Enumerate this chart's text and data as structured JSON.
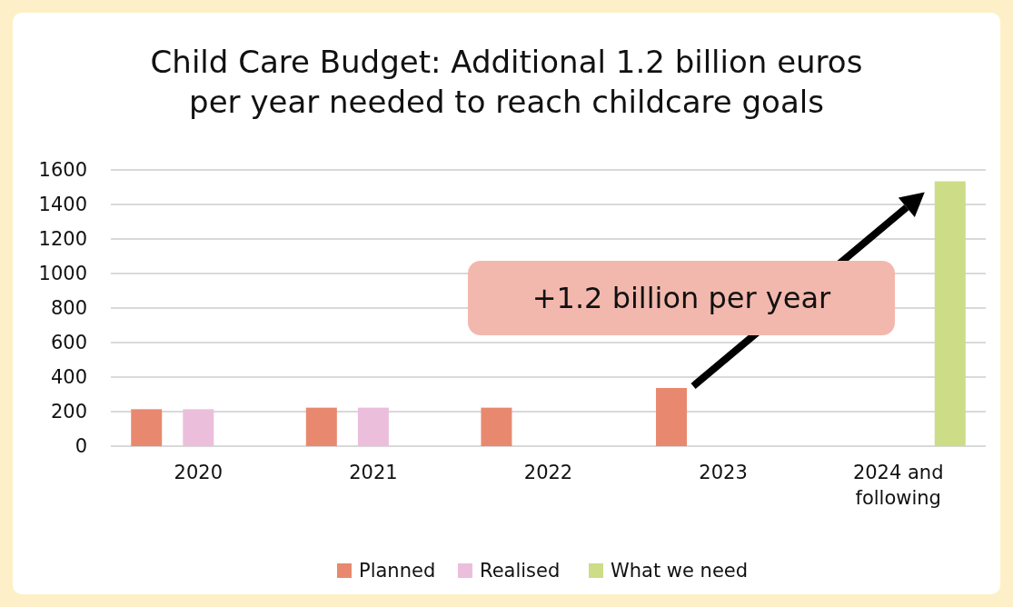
{
  "chart_data": {
    "type": "bar",
    "title": "Child Care Budget: Additional 1.2 billion euros per year needed to reach childcare goals",
    "categories": [
      "2020",
      "2021",
      "2022",
      "2023",
      "2024 and following"
    ],
    "series": [
      {
        "name": "Planned",
        "color": "#e8896f",
        "values": [
          214,
          223,
          223,
          337,
          null
        ]
      },
      {
        "name": "Realised",
        "color": "#ebbfdc",
        "values": [
          214,
          223,
          null,
          null,
          null
        ]
      },
      {
        "name": "What we need",
        "color": "#cddc86",
        "values": [
          null,
          null,
          null,
          null,
          1534
        ]
      }
    ],
    "ylim": [
      0,
      1600
    ],
    "yticks": [
      0,
      200,
      400,
      600,
      800,
      1000,
      1200,
      1400,
      1600
    ],
    "grid": "y",
    "legend": "bottom",
    "annotations": [
      "+1.2 billion per year"
    ]
  }
}
